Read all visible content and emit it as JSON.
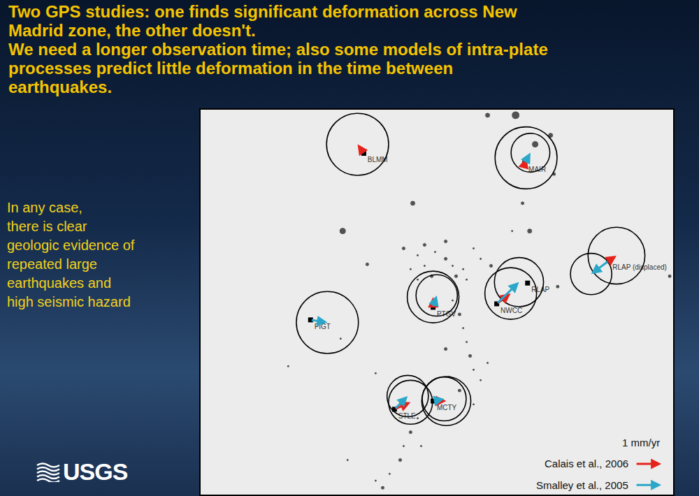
{
  "slide": {
    "title_lines": [
      "Two GPS studies: one finds significant deformation across New",
      "Madrid zone, the other doesn't.",
      "We need a longer observation time; also some models of intra-plate",
      "processes predict little deformation in the time between",
      "earthquakes."
    ],
    "side_text_lines": [
      "In any case,",
      "there is clear",
      "geologic evidence of",
      "repeated large",
      "earthquakes and",
      "high seismic hazard"
    ],
    "logo": "USGS"
  },
  "chart_data": {
    "type": "map",
    "xlim": [
      -91.0,
      -88.0
    ],
    "ylim": [
      35.3,
      37.6
    ],
    "tick_labels": false,
    "grid": false,
    "stations": [
      {
        "name": "BLMM",
        "lon": -89.964,
        "lat": 37.339
      },
      {
        "name": "MAIR",
        "lon": -88.942,
        "lat": 37.281
      },
      {
        "name": "RLAP",
        "lon": -88.924,
        "lat": 36.564
      },
      {
        "name": "RLAP (displaced)",
        "lon": -88.409,
        "lat": 36.697
      },
      {
        "name": "NWCC",
        "lon": -89.12,
        "lat": 36.44
      },
      {
        "name": "PTGV",
        "lon": -89.524,
        "lat": 36.419
      },
      {
        "name": "PIGT",
        "lon": -90.302,
        "lat": 36.344
      },
      {
        "name": "STLE",
        "lon": -89.769,
        "lat": 35.81
      },
      {
        "name": "MCTY",
        "lon": -89.524,
        "lat": 35.859
      }
    ],
    "series": [
      {
        "name": "Calais et al., 2006",
        "color": "#e5231c",
        "vectors": [
          {
            "station": "BLMM",
            "east": -0.24,
            "north": 0.35,
            "error": 1.2
          },
          {
            "station": "MAIR",
            "east": 0.05,
            "north": 0.2,
            "error": 1.2
          },
          {
            "station": "RLAP (displaced)",
            "east": 0.3,
            "north": 0.2,
            "error": 1.1
          },
          {
            "station": "NWCC",
            "east": 0.54,
            "north": 0.4,
            "error": 1.0
          },
          {
            "station": "PTGV",
            "east": 0.0,
            "north": 0.4,
            "error": 1.0
          },
          {
            "station": "STLE",
            "east": 0.62,
            "north": 0.27,
            "error": 0.85
          },
          {
            "station": "MCTY",
            "east": 0.51,
            "north": 0.0,
            "error": 0.95
          }
        ]
      },
      {
        "name": "Smalley et al., 2005",
        "color": "#2aa7c9",
        "vectors": [
          {
            "station": "MAIR",
            "east": 0.22,
            "north": 0.4,
            "error": 0.75
          },
          {
            "station": "RLAP (displaced)",
            "east": -0.68,
            "north": -0.51,
            "error": 0.8
          },
          {
            "station": "NWCC",
            "east": 0.86,
            "north": 0.84,
            "error": 0.95
          },
          {
            "station": "PTGV",
            "east": 0.14,
            "north": 0.46,
            "error": 0.8
          },
          {
            "station": "PIGT",
            "east": 0.65,
            "north": -0.1,
            "error": 1.2
          },
          {
            "station": "STLE",
            "east": 0.51,
            "north": 0.51,
            "error": 0.8
          },
          {
            "station": "MCTY",
            "east": 0.43,
            "north": 0.08,
            "error": 0.85
          }
        ]
      }
    ],
    "scale": {
      "value": 1,
      "label": "1 mm/yr"
    },
    "earthquakes": [
      [
        -89.0,
        37.567,
        4.5
      ],
      [
        -88.876,
        37.393,
        4.0
      ],
      [
        -88.778,
        37.447,
        3.5
      ],
      [
        -89.178,
        37.567,
        3.5
      ],
      [
        -88.756,
        37.215,
        3.0
      ],
      [
        -88.956,
        37.041,
        3.0
      ],
      [
        -88.911,
        36.875,
        3.5
      ],
      [
        -90.098,
        36.875,
        4.0
      ],
      [
        -89.942,
        36.676,
        3.0
      ],
      [
        -89.653,
        37.041,
        3.5
      ],
      [
        -89.711,
        36.771,
        3.0
      ],
      [
        -89.622,
        36.73,
        2.5
      ],
      [
        -89.578,
        36.792,
        3.0
      ],
      [
        -89.511,
        36.75,
        2.5
      ],
      [
        -89.444,
        36.709,
        3.0
      ],
      [
        -89.4,
        36.667,
        2.5
      ],
      [
        -89.378,
        36.605,
        3.0
      ],
      [
        -89.333,
        36.647,
        2.5
      ],
      [
        -89.311,
        36.585,
        2.5
      ],
      [
        -89.578,
        36.667,
        2.5
      ],
      [
        -89.533,
        36.605,
        3.0
      ],
      [
        -89.667,
        36.647,
        2.5
      ],
      [
        -89.622,
        36.585,
        2.5
      ],
      [
        -89.444,
        36.813,
        3.0
      ],
      [
        -89.267,
        36.771,
        2.5
      ],
      [
        -89.222,
        36.709,
        2.5
      ],
      [
        -89.4,
        36.46,
        2.5
      ],
      [
        -89.356,
        36.377,
        3.0
      ],
      [
        -89.333,
        36.295,
        2.5
      ],
      [
        -89.311,
        36.212,
        2.5
      ],
      [
        -89.289,
        36.129,
        3.0
      ],
      [
        -89.267,
        36.046,
        2.5
      ],
      [
        -89.222,
        35.984,
        2.5
      ],
      [
        -89.178,
        36.087,
        2.5
      ],
      [
        -89.444,
        36.17,
        3.0
      ],
      [
        -89.422,
        36.004,
        2.5
      ],
      [
        -89.356,
        35.922,
        3.0
      ],
      [
        -89.267,
        35.839,
        2.5
      ],
      [
        -89.622,
        35.756,
        2.5
      ],
      [
        -89.667,
        35.673,
        3.0
      ],
      [
        -89.711,
        35.59,
        2.5
      ],
      [
        -89.733,
        35.507,
        3.0
      ],
      [
        -89.8,
        35.424,
        2.5
      ],
      [
        -89.844,
        35.341,
        3.0
      ],
      [
        -89.889,
        35.383,
        2.5
      ],
      [
        -89.6,
        35.59,
        2.5
      ],
      [
        -89.156,
        36.667,
        3.0
      ],
      [
        -89.022,
        36.875,
        2.5
      ],
      [
        -88.733,
        36.543,
        3.0
      ],
      [
        -88.022,
        36.605,
        3.0
      ],
      [
        -90.111,
        36.232,
        2.5
      ],
      [
        -90.444,
        36.067,
        2.5
      ],
      [
        -90.067,
        35.507,
        2.5
      ],
      [
        -89.889,
        36.025,
        2.5
      ]
    ]
  }
}
